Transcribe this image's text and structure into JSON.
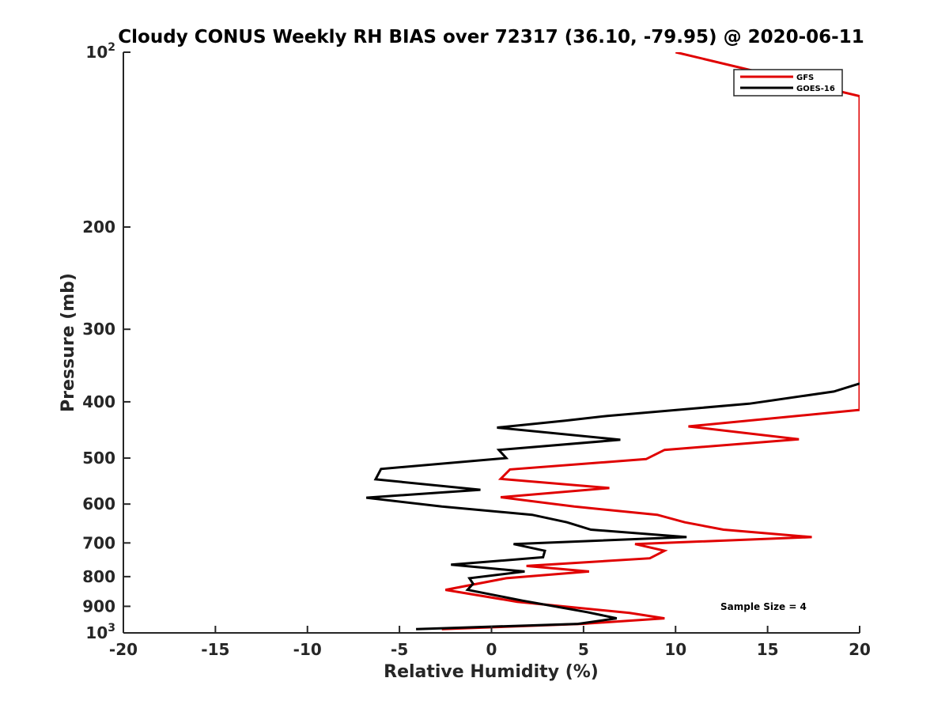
{
  "chart_data": {
    "type": "line",
    "title": "Cloudy CONUS Weekly RH BIAS over 72317 (36.10, -79.95) @ 2020-06-11",
    "xlabel": "Relative Humidity (%)",
    "ylabel": "Pressure (mb)",
    "xlim": [
      -20,
      20
    ],
    "ylim": [
      100,
      1000
    ],
    "yscale": "log",
    "y_reversed": true,
    "x_ticks": [
      "-20",
      "-15",
      "-10",
      "-5",
      "0",
      "5",
      "10",
      "15",
      "20"
    ],
    "y_ticks": [
      {
        "value": 100,
        "base": "10",
        "exp": "2"
      },
      {
        "value": 200,
        "label": "200"
      },
      {
        "value": 300,
        "label": "300"
      },
      {
        "value": 400,
        "label": "400"
      },
      {
        "value": 500,
        "label": "500"
      },
      {
        "value": 600,
        "label": "600"
      },
      {
        "value": 700,
        "label": "700"
      },
      {
        "value": 800,
        "label": "800"
      },
      {
        "value": 900,
        "label": "900"
      },
      {
        "value": 1000,
        "base": "10",
        "exp": "3"
      }
    ],
    "legend_position": "top-right",
    "annotation": "Sample Size = 4",
    "series": [
      {
        "name": "GFS",
        "color": "#e00000",
        "points": [
          [
            10.0,
            100
          ],
          [
            20.0,
            119
          ],
          [
            20.0,
            413
          ],
          [
            10.7,
            441
          ],
          [
            16.7,
            464
          ],
          [
            9.4,
            484
          ],
          [
            8.4,
            502
          ],
          [
            1.0,
            523
          ],
          [
            0.5,
            543
          ],
          [
            6.4,
            563
          ],
          [
            0.5,
            584
          ],
          [
            4.5,
            606
          ],
          [
            9.0,
            626
          ],
          [
            10.5,
            645
          ],
          [
            12.6,
            664
          ],
          [
            17.4,
            684
          ],
          [
            7.8,
            703
          ],
          [
            9.4,
            722
          ],
          [
            8.6,
            744
          ],
          [
            1.9,
            767
          ],
          [
            5.3,
            784
          ],
          [
            0.8,
            805
          ],
          [
            -2.5,
            843
          ],
          [
            1.4,
            884
          ],
          [
            7.5,
            924
          ],
          [
            9.4,
            944
          ],
          [
            4.9,
            965
          ],
          [
            -2.7,
            985
          ]
        ]
      },
      {
        "name": "GOES-16",
        "color": "#000000",
        "points": [
          [
            20.0,
            372
          ],
          [
            18.6,
            384
          ],
          [
            14.0,
            403
          ],
          [
            6.3,
            423
          ],
          [
            4.0,
            431
          ],
          [
            0.3,
            443
          ],
          [
            7.0,
            465
          ],
          [
            0.4,
            484
          ],
          [
            0.8,
            500
          ],
          [
            -6.0,
            522
          ],
          [
            -6.3,
            544
          ],
          [
            -0.6,
            567
          ],
          [
            -6.8,
            585
          ],
          [
            -2.7,
            606
          ],
          [
            2.2,
            626
          ],
          [
            4.1,
            645
          ],
          [
            5.4,
            664
          ],
          [
            10.6,
            684
          ],
          [
            1.2,
            703
          ],
          [
            2.9,
            722
          ],
          [
            2.8,
            741
          ],
          [
            -2.2,
            763
          ],
          [
            1.8,
            784
          ],
          [
            -1.2,
            805
          ],
          [
            -1.0,
            823
          ],
          [
            -1.3,
            843
          ],
          [
            1.7,
            880
          ],
          [
            5.2,
            921
          ],
          [
            6.8,
            944
          ],
          [
            4.7,
            965
          ],
          [
            -4.1,
            985
          ]
        ]
      }
    ]
  }
}
